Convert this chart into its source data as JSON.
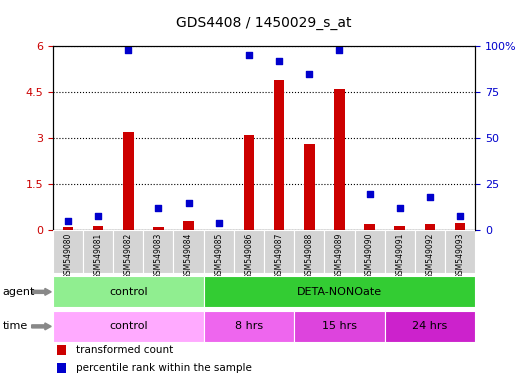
{
  "title": "GDS4408 / 1450029_s_at",
  "samples": [
    "GSM549080",
    "GSM549081",
    "GSM549082",
    "GSM549083",
    "GSM549084",
    "GSM549085",
    "GSM549086",
    "GSM549087",
    "GSM549088",
    "GSM549089",
    "GSM549090",
    "GSM549091",
    "GSM549092",
    "GSM549093"
  ],
  "transformed_count": [
    0.12,
    0.15,
    3.2,
    0.1,
    0.3,
    0.0,
    3.1,
    4.9,
    2.8,
    4.6,
    0.2,
    0.15,
    0.2,
    0.25
  ],
  "percentile_rank": [
    5,
    8,
    98,
    12,
    15,
    4,
    95,
    92,
    85,
    98,
    20,
    12,
    18,
    8
  ],
  "ylim_left": [
    0,
    6
  ],
  "ylim_right": [
    0,
    100
  ],
  "yticks_left": [
    0,
    1.5,
    3,
    4.5,
    6
  ],
  "ytick_labels_left": [
    "0",
    "1.5",
    "3",
    "4.5",
    "6"
  ],
  "yticks_right": [
    0,
    25,
    50,
    75,
    100
  ],
  "ytick_labels_right": [
    "0",
    "25",
    "50",
    "75",
    "100%"
  ],
  "bar_color": "#cc0000",
  "dot_color": "#0000cc",
  "agent_regions": [
    {
      "label": "control",
      "start": 0,
      "end": 4,
      "color": "#90ee90"
    },
    {
      "label": "DETA-NONOate",
      "start": 5,
      "end": 13,
      "color": "#33cc33"
    }
  ],
  "time_regions": [
    {
      "label": "control",
      "start": 0,
      "end": 4,
      "color": "#ffaaff"
    },
    {
      "label": "8 hrs",
      "start": 5,
      "end": 7,
      "color": "#ee66ee"
    },
    {
      "label": "15 hrs",
      "start": 8,
      "end": 10,
      "color": "#dd44dd"
    },
    {
      "label": "24 hrs",
      "start": 11,
      "end": 13,
      "color": "#cc22cc"
    }
  ],
  "legend_items": [
    {
      "label": "transformed count",
      "color": "#cc0000"
    },
    {
      "label": "percentile rank within the sample",
      "color": "#0000cc"
    }
  ],
  "agent_label": "agent",
  "time_label": "time"
}
